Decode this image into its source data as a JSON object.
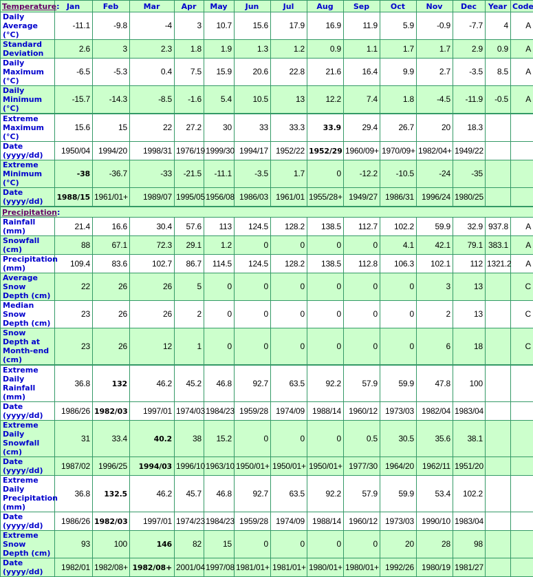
{
  "header": {
    "section": "Temperature",
    "columns": [
      "Jan",
      "Feb",
      "Mar",
      "Apr",
      "May",
      "Jun",
      "Jul",
      "Aug",
      "Sep",
      "Oct",
      "Nov",
      "Dec",
      "Year",
      "Code"
    ]
  },
  "colors": {
    "green_row": "#ccffcc",
    "label_blue": "#0000cc",
    "border": "#339966",
    "section_link": "#660066"
  },
  "temperature_rows": [
    {
      "label": "Daily Average (°C)",
      "bg": "w",
      "values": [
        "-11.1",
        "-9.8",
        "-4",
        "3",
        "10.7",
        "15.6",
        "17.9",
        "16.9",
        "11.9",
        "5.9",
        "-0.9",
        "-7.7",
        "4",
        "A"
      ]
    },
    {
      "label": "Standard Deviation",
      "bg": "g",
      "values": [
        "2.6",
        "3",
        "2.3",
        "1.8",
        "1.9",
        "1.3",
        "1.2",
        "0.9",
        "1.1",
        "1.7",
        "1.7",
        "2.9",
        "0.9",
        "A"
      ]
    },
    {
      "label": "Daily Maximum (°C)",
      "bg": "w",
      "values": [
        "-6.5",
        "-5.3",
        "0.4",
        "7.5",
        "15.9",
        "20.6",
        "22.8",
        "21.6",
        "16.4",
        "9.9",
        "2.7",
        "-3.5",
        "8.5",
        "A"
      ]
    },
    {
      "label": "Daily Minimum (°C)",
      "bg": "g",
      "thick": true,
      "values": [
        "-15.7",
        "-14.3",
        "-8.5",
        "-1.6",
        "5.4",
        "10.5",
        "13",
        "12.2",
        "7.4",
        "1.8",
        "-4.5",
        "-11.9",
        "-0.5",
        "A"
      ]
    },
    {
      "label": "Extreme Maximum (°C)",
      "bg": "w",
      "bold": 7,
      "values": [
        "15.6",
        "15",
        "22",
        "27.2",
        "30",
        "33",
        "33.3",
        "33.9",
        "29.4",
        "26.7",
        "20",
        "18.3",
        "",
        ""
      ]
    },
    {
      "label": "Date (yyyy/dd)",
      "bg": "w",
      "bold": 7,
      "values": [
        "1950/04",
        "1994/20",
        "1998/31",
        "1976/19",
        "1999/30",
        "1994/17",
        "1952/22",
        "1952/29",
        "1960/09+",
        "1970/09+",
        "1982/04+",
        "1949/22",
        "",
        ""
      ]
    },
    {
      "label": "Extreme Minimum (°C)",
      "bg": "g",
      "bold": 0,
      "values": [
        "-38",
        "-36.7",
        "-33",
        "-21.5",
        "-11.1",
        "-3.5",
        "1.7",
        "0",
        "-12.2",
        "-10.5",
        "-24",
        "-35",
        "",
        ""
      ]
    },
    {
      "label": "Date (yyyy/dd)",
      "bg": "g",
      "bold": 0,
      "thick": true,
      "values": [
        "1988/15",
        "1961/01+",
        "1989/07",
        "1995/05",
        "1956/08",
        "1986/03",
        "1961/01",
        "1955/28+",
        "1949/27",
        "1986/31",
        "1996/24",
        "1980/25",
        "",
        ""
      ]
    }
  ],
  "precipitation_section": "Precipitation",
  "precipitation_rows": [
    {
      "label": "Rainfall (mm)",
      "bg": "w",
      "values": [
        "21.4",
        "16.6",
        "30.4",
        "57.6",
        "113",
        "124.5",
        "128.2",
        "138.5",
        "112.7",
        "102.2",
        "59.9",
        "32.9",
        "937.8",
        "A"
      ]
    },
    {
      "label": "Snowfall (cm)",
      "bg": "g",
      "values": [
        "88",
        "67.1",
        "72.3",
        "29.1",
        "1.2",
        "0",
        "0",
        "0",
        "0",
        "4.1",
        "42.1",
        "79.1",
        "383.1",
        "A"
      ]
    },
    {
      "label": "Precipitation (mm)",
      "bg": "w",
      "values": [
        "109.4",
        "83.6",
        "102.7",
        "86.7",
        "114.5",
        "124.5",
        "128.2",
        "138.5",
        "112.8",
        "106.3",
        "102.1",
        "112",
        "1321.2",
        "A"
      ]
    },
    {
      "label": "Average Snow Depth (cm)",
      "bg": "g",
      "values": [
        "22",
        "26",
        "26",
        "5",
        "0",
        "0",
        "0",
        "0",
        "0",
        "0",
        "3",
        "13",
        "",
        "C"
      ]
    },
    {
      "label": "Median Snow Depth (cm)",
      "bg": "w",
      "values": [
        "23",
        "26",
        "26",
        "2",
        "0",
        "0",
        "0",
        "0",
        "0",
        "0",
        "2",
        "13",
        "",
        "C"
      ]
    },
    {
      "label": "Snow Depth at Month-end (cm)",
      "bg": "g",
      "thick": true,
      "values": [
        "23",
        "26",
        "12",
        "1",
        "0",
        "0",
        "0",
        "0",
        "0",
        "0",
        "6",
        "18",
        "",
        "C"
      ]
    },
    {
      "label": "Extreme Daily Rainfall (mm)",
      "bg": "w",
      "bold": 1,
      "values": [
        "36.8",
        "132",
        "46.2",
        "45.2",
        "46.8",
        "92.7",
        "63.5",
        "92.2",
        "57.9",
        "59.9",
        "47.8",
        "100",
        "",
        ""
      ]
    },
    {
      "label": "Date (yyyy/dd)",
      "bg": "w",
      "bold": 1,
      "values": [
        "1986/26",
        "1982/03",
        "1997/01",
        "1974/03",
        "1984/23",
        "1959/28",
        "1974/09",
        "1988/14",
        "1960/12",
        "1973/03",
        "1982/04",
        "1983/04",
        "",
        ""
      ]
    },
    {
      "label": "Extreme Daily Snowfall (cm)",
      "bg": "g",
      "bold": 2,
      "values": [
        "31",
        "33.4",
        "40.2",
        "38",
        "15.2",
        "0",
        "0",
        "0",
        "0.5",
        "30.5",
        "35.6",
        "38.1",
        "",
        ""
      ]
    },
    {
      "label": "Date (yyyy/dd)",
      "bg": "g",
      "bold": 2,
      "values": [
        "1987/02",
        "1996/25",
        "1994/03",
        "1996/10",
        "1963/10",
        "1950/01+",
        "1950/01+",
        "1950/01+",
        "1977/30",
        "1964/20",
        "1962/11",
        "1951/20",
        "",
        ""
      ]
    },
    {
      "label": "Extreme Daily Precipitation (mm)",
      "bg": "w",
      "bold": 1,
      "values": [
        "36.8",
        "132.5",
        "46.2",
        "45.7",
        "46.8",
        "92.7",
        "63.5",
        "92.2",
        "57.9",
        "59.9",
        "53.4",
        "102.2",
        "",
        ""
      ]
    },
    {
      "label": "Date (yyyy/dd)",
      "bg": "w",
      "bold": 1,
      "values": [
        "1986/26",
        "1982/03",
        "1997/01",
        "1974/23",
        "1984/23",
        "1959/28",
        "1974/09",
        "1988/14",
        "1960/12",
        "1973/03",
        "1990/10",
        "1983/04",
        "",
        ""
      ]
    },
    {
      "label": "Extreme Snow Depth (cm)",
      "bg": "g",
      "bold": 2,
      "values": [
        "93",
        "100",
        "146",
        "82",
        "15",
        "0",
        "0",
        "0",
        "0",
        "20",
        "28",
        "98",
        "",
        ""
      ]
    },
    {
      "label": "Date (yyyy/dd)",
      "bg": "g",
      "bold": 2,
      "values": [
        "1982/01",
        "1982/08+",
        "1982/08+",
        "2001/04",
        "1997/08",
        "1981/01+",
        "1981/01+",
        "1980/01+",
        "1980/01+",
        "1992/26",
        "1980/19",
        "1981/27",
        "",
        ""
      ]
    }
  ]
}
